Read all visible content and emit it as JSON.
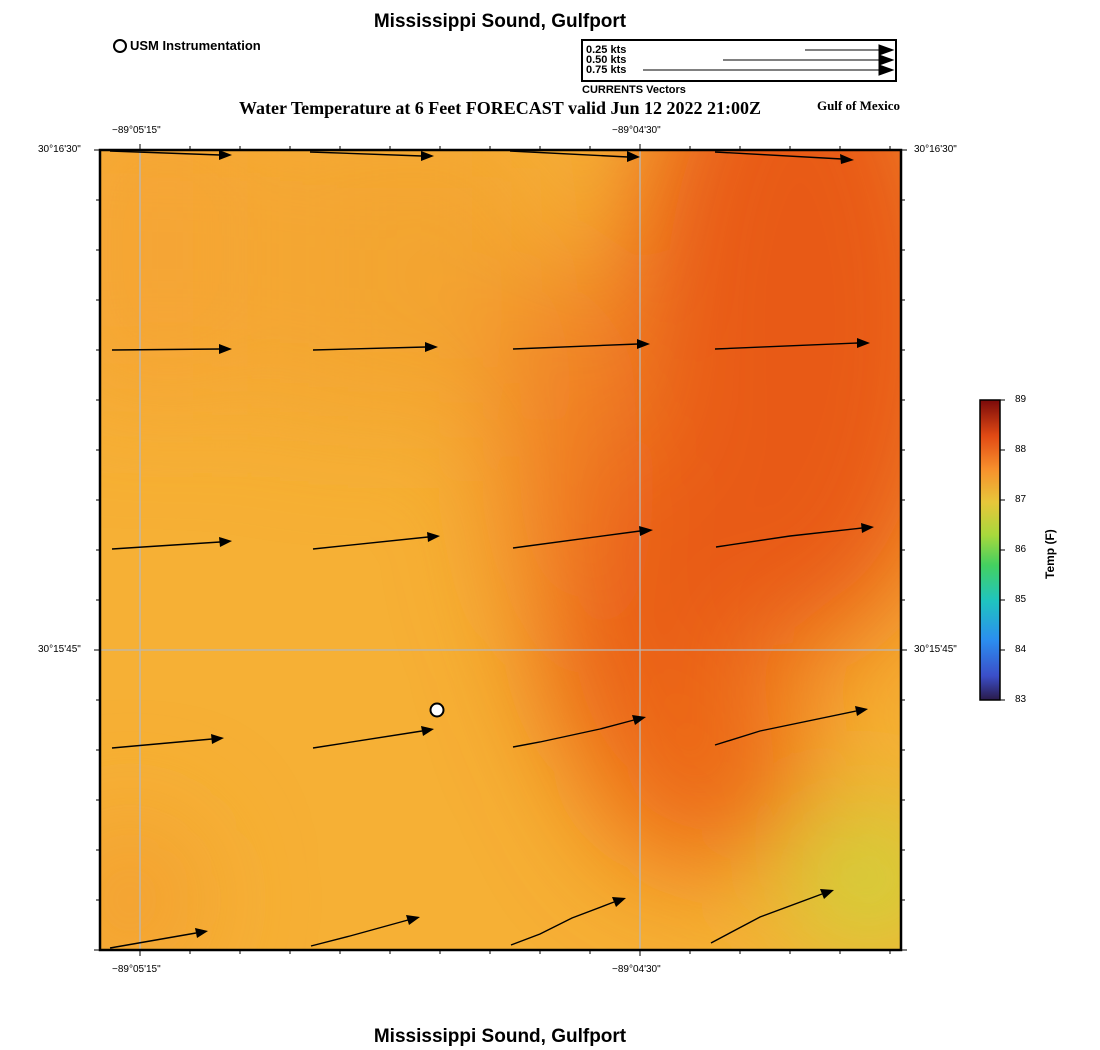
{
  "title": "Mississippi Sound, Gulfport",
  "footer_title": "Mississippi Sound, Gulfport",
  "marker_legend": "USM Instrumentation",
  "product_title": "Water Temperature at 6 Feet FORECAST valid Jun 12 2022 21:00Z",
  "region_label": "Gulf of Mexico",
  "vector_legend": {
    "rows": [
      "0.25 kts",
      "0.50 kts",
      "0.75 kts"
    ],
    "caption": "CURRENTS Vectors"
  },
  "axes": {
    "lon_labels": [
      "−89°05'15\"",
      "−89°04'30\""
    ],
    "lat_labels": [
      "30°16'30\"",
      "30°15'45\""
    ]
  },
  "colorbar": {
    "title": "Temp (F)",
    "ticks": [
      "89",
      "88",
      "87",
      "86",
      "85",
      "84",
      "83"
    ],
    "min": 83,
    "max": 89
  },
  "colors": {
    "warm_orange": "#f6b035",
    "hot_orange": "#e85a14",
    "yellow_green": "#c9d83a"
  }
}
